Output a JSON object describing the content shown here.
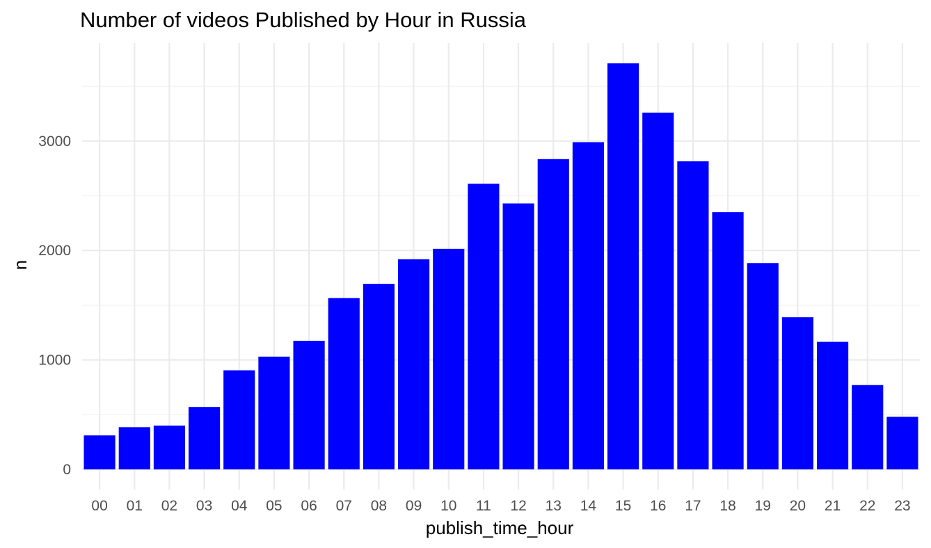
{
  "chart_data": {
    "type": "bar",
    "title": "Number of videos Published by Hour in Russia",
    "xlabel": "publish_time_hour",
    "ylabel": "n",
    "categories": [
      "00",
      "01",
      "02",
      "03",
      "04",
      "05",
      "06",
      "07",
      "08",
      "09",
      "10",
      "11",
      "12",
      "13",
      "14",
      "15",
      "16",
      "17",
      "18",
      "19",
      "20",
      "21",
      "22",
      "23"
    ],
    "values": [
      310,
      385,
      400,
      570,
      905,
      1030,
      1175,
      1565,
      1695,
      1920,
      2015,
      2610,
      2430,
      2835,
      2990,
      3710,
      3260,
      2815,
      2350,
      1885,
      1390,
      1165,
      770,
      480
    ],
    "yticks": [
      0,
      1000,
      2000,
      3000
    ],
    "ylim": [
      -185,
      3895
    ],
    "bar_color": "#0000ff",
    "grid": true,
    "legend": "none"
  }
}
